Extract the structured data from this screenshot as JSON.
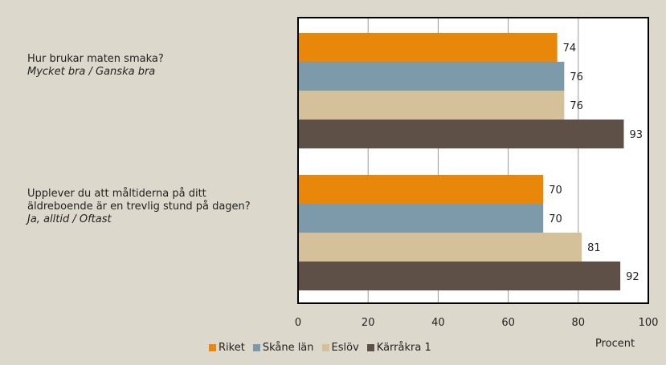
{
  "questions": [
    {
      "main": "Hur brukar maten smaka?",
      "sub": "Mycket bra / Ganska bra"
    },
    {
      "main": "Upplever du att måltiderna på ditt äldreboende är en trevlig stund på dagen?",
      "sub": "Ja, alltid / Oftast"
    }
  ],
  "chart_data": {
    "type": "bar",
    "orientation": "horizontal",
    "categories": [
      "Hur brukar maten smaka?",
      "Upplever du att måltiderna på ditt äldreboende är en trevlig stund på dagen?"
    ],
    "series": [
      {
        "name": "Riket",
        "color": "#e8870a",
        "values": [
          74,
          70
        ]
      },
      {
        "name": "Skåne län",
        "color": "#7d9aab",
        "values": [
          76,
          70
        ]
      },
      {
        "name": "Eslöv",
        "color": "#d4c19a",
        "values": [
          76,
          81
        ]
      },
      {
        "name": "Kärråkra 1",
        "color": "#5e5046",
        "values": [
          93,
          92
        ]
      }
    ],
    "xlim": [
      0,
      100
    ],
    "xticks": [
      "0",
      "20",
      "40",
      "60",
      "80",
      "100"
    ],
    "xlabel": "Procent",
    "grid": true,
    "legend": "bottom"
  }
}
